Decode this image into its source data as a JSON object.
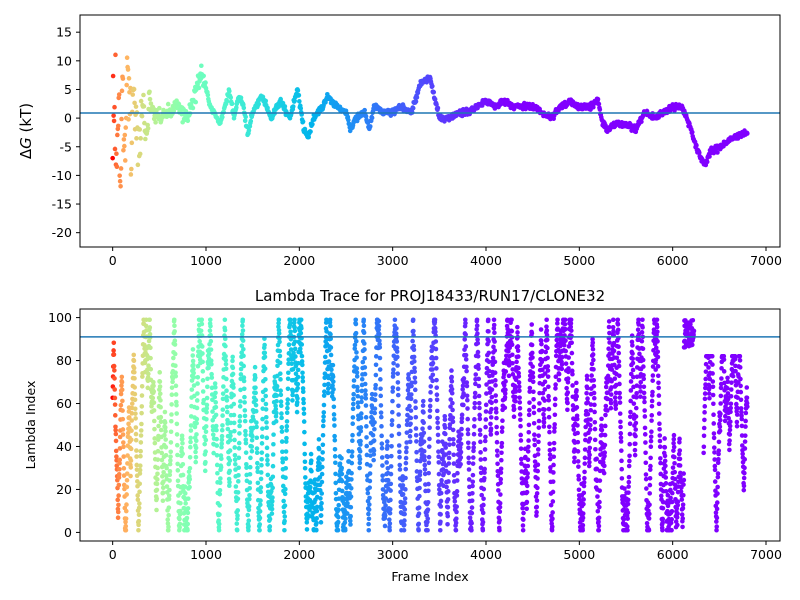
{
  "chart_data": [
    {
      "type": "scatter",
      "title": "",
      "xlabel": "",
      "ylabel_symbol": "Δ",
      "ylabel_var": "G",
      "ylabel_unit": " (kT)",
      "xlim": [
        -350,
        7150
      ],
      "ylim": [
        -22.5,
        18
      ],
      "xticks": [
        0,
        1000,
        2000,
        3000,
        4000,
        5000,
        6000,
        7000
      ],
      "yticks": [
        -20,
        -15,
        -10,
        -5,
        0,
        5,
        10,
        15
      ],
      "reference_line": 0.9,
      "reference_color": "#1f77b4",
      "colormap": "rainbow",
      "x_max": 6800,
      "anchors": [
        [
          0,
          0
        ],
        [
          20,
          2
        ],
        [
          40,
          -6
        ],
        [
          60,
          8
        ],
        [
          80,
          -12
        ],
        [
          100,
          6
        ],
        [
          130,
          -8
        ],
        [
          160,
          10
        ],
        [
          200,
          -4
        ],
        [
          240,
          4
        ],
        [
          280,
          -6
        ],
        [
          320,
          3
        ],
        [
          360,
          -2
        ],
        [
          400,
          2
        ],
        [
          500,
          0
        ],
        [
          600,
          1
        ],
        [
          700,
          2
        ],
        [
          800,
          0
        ],
        [
          950,
          8
        ],
        [
          1050,
          2
        ],
        [
          1150,
          -1
        ],
        [
          1200,
          2
        ],
        [
          1250,
          5
        ],
        [
          1300,
          0
        ],
        [
          1350,
          4
        ],
        [
          1400,
          2
        ],
        [
          1450,
          -3
        ],
        [
          1500,
          1
        ],
        [
          1600,
          4
        ],
        [
          1700,
          0
        ],
        [
          1800,
          3
        ],
        [
          1900,
          0
        ],
        [
          1980,
          5
        ],
        [
          2050,
          -2
        ],
        [
          2100,
          -3
        ],
        [
          2150,
          0
        ],
        [
          2250,
          2
        ],
        [
          2300,
          4
        ],
        [
          2400,
          2
        ],
        [
          2500,
          1
        ],
        [
          2550,
          -2
        ],
        [
          2600,
          0
        ],
        [
          2700,
          1
        ],
        [
          2750,
          -2
        ],
        [
          2800,
          2
        ],
        [
          2900,
          1
        ],
        [
          3000,
          1
        ],
        [
          3100,
          2
        ],
        [
          3200,
          1
        ],
        [
          3300,
          6
        ],
        [
          3400,
          7
        ],
        [
          3500,
          0
        ],
        [
          3600,
          0
        ],
        [
          3700,
          1
        ],
        [
          3800,
          1
        ],
        [
          3900,
          2
        ],
        [
          4000,
          3
        ],
        [
          4100,
          2
        ],
        [
          4200,
          3
        ],
        [
          4300,
          2
        ],
        [
          4400,
          2
        ],
        [
          4500,
          2
        ],
        [
          4600,
          1
        ],
        [
          4700,
          0
        ],
        [
          4800,
          2
        ],
        [
          4900,
          3
        ],
        [
          5000,
          2
        ],
        [
          5100,
          2
        ],
        [
          5200,
          3
        ],
        [
          5250,
          -1
        ],
        [
          5300,
          -2
        ],
        [
          5400,
          -1
        ],
        [
          5500,
          -1
        ],
        [
          5600,
          -2
        ],
        [
          5700,
          1
        ],
        [
          5800,
          0
        ],
        [
          5900,
          1
        ],
        [
          6000,
          2
        ],
        [
          6100,
          2
        ],
        [
          6200,
          -2
        ],
        [
          6250,
          -5
        ],
        [
          6300,
          -7
        ],
        [
          6350,
          -8
        ],
        [
          6400,
          -6
        ],
        [
          6500,
          -5
        ],
        [
          6600,
          -4
        ],
        [
          6700,
          -3
        ],
        [
          6800,
          -2.5
        ]
      ]
    },
    {
      "type": "scatter",
      "title": "Lambda Trace for PROJ18433/RUN17/CLONE32",
      "xlabel": "Frame Index",
      "ylabel": "Lambda Index",
      "xlim": [
        -350,
        7150
      ],
      "ylim": [
        -4,
        104
      ],
      "xticks": [
        0,
        1000,
        2000,
        3000,
        4000,
        5000,
        6000,
        7000
      ],
      "yticks": [
        0,
        20,
        40,
        60,
        80,
        100
      ],
      "reference_line": 91,
      "reference_color": "#1f77b4",
      "colormap": "rainbow",
      "x_max": 6800,
      "lambda_range": [
        0,
        99
      ],
      "gap_ranges": [
        [
          6230,
          6330
        ]
      ]
    }
  ]
}
